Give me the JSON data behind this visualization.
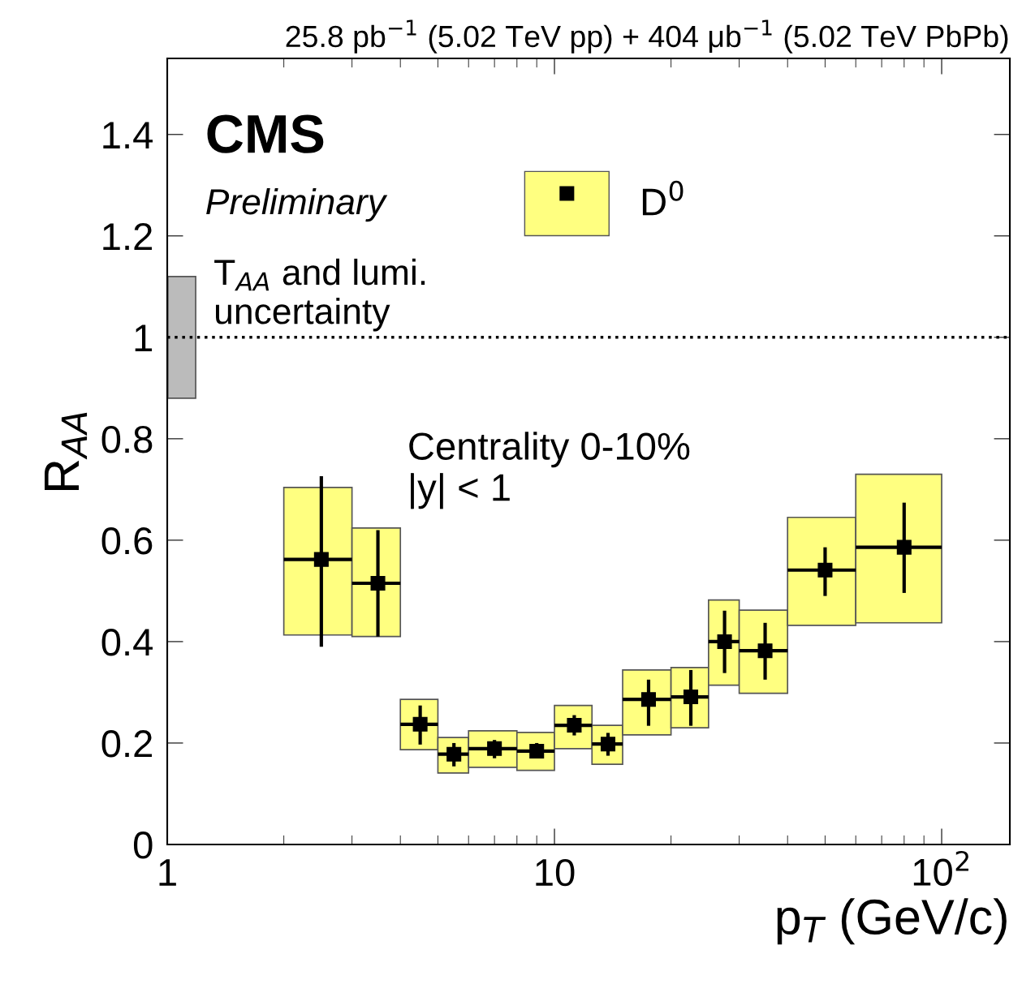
{
  "chart_data": {
    "type": "scatter",
    "title": "25.8 pb$^{−1}$ (5.02 TeV pp) + 404 μb$^{−1}$ (5.02 TeV PbPb)",
    "xlabel": "p$_{T}$ (GeV/c)",
    "ylabel": "R$_{AA}$",
    "log": "x",
    "xlim": [
      1,
      150
    ],
    "ylim": [
      0,
      1.55
    ],
    "xticks": [
      1,
      10,
      {
        "value": 100,
        "label": "10$^{2}$"
      }
    ],
    "yticks": [
      0,
      0.2,
      0.4,
      0.6,
      0.8,
      1,
      1.2,
      1.4
    ],
    "legend": "top",
    "grid": false,
    "series": [
      {
        "type": "bar",
        "color": "#ffff80",
        "x": [
          2.5,
          3.5,
          4.5,
          5.5,
          7,
          9,
          11.25,
          13.75,
          17.5,
          22.5,
          27.5,
          35,
          50,
          80
        ],
        "base": [
          0.413,
          0.41,
          0.187,
          0.141,
          0.152,
          0.146,
          0.189,
          0.158,
          0.216,
          0.23,
          0.314,
          0.298,
          0.432,
          0.437
        ],
        "values": [
          0.291,
          0.214,
          0.099,
          0.07,
          0.072,
          0.075,
          0.085,
          0.077,
          0.128,
          0.119,
          0.168,
          0.164,
          0.213,
          0.293
        ]
      },
      {
        "type": "bar",
        "color": "#bbbbbb",
        "x": [
          1.09
        ],
        "base": [
          0.88
        ],
        "values": [
          0.24
        ]
      },
      {
        "name": "D$^{0}$",
        "color": "#000000",
        "marker": "square",
        "x": [
          2.5,
          3.5,
          4.5,
          5.5,
          7,
          9,
          11.25,
          13.75,
          17.5,
          22.5,
          27.5,
          35,
          50,
          80
        ],
        "values": [
          0.562,
          0.515,
          0.237,
          0.178,
          0.189,
          0.184,
          0.235,
          0.198,
          0.286,
          0.291,
          0.4,
          0.382,
          0.541,
          0.586
        ],
        "errors": [
          [
            0.39,
            0.726
          ],
          [
            0.41,
            0.62
          ],
          [
            0.197,
            0.274
          ],
          [
            0.154,
            0.2
          ],
          [
            0.17,
            0.206
          ],
          [
            0.17,
            0.2
          ],
          [
            0.215,
            0.255
          ],
          [
            0.175,
            0.22
          ],
          [
            0.234,
            0.325
          ],
          [
            0.234,
            0.344
          ],
          [
            0.338,
            0.461
          ],
          [
            0.325,
            0.437
          ],
          [
            0.49,
            0.586
          ],
          [
            0.496,
            0.674
          ]
        ],
        "xerrors": [
          [
            2,
            3
          ],
          [
            3,
            4
          ],
          [
            4,
            5
          ],
          [
            5,
            6
          ],
          [
            6,
            8
          ],
          [
            8,
            10
          ],
          [
            10,
            12.5
          ],
          [
            12.5,
            15
          ],
          [
            15,
            20
          ],
          [
            20,
            25
          ],
          [
            25,
            30
          ],
          [
            30,
            40
          ],
          [
            40,
            60
          ],
          [
            60,
            100
          ]
        ]
      }
    ],
    "ref_lines": [
      {
        "axis": "y",
        "value": 1,
        "line_style": "dotted",
        "color": "#000000"
      }
    ],
    "annotations": [
      "CMS",
      "Preliminary",
      "T$_{AA}$ and lumi.\nuncertainty",
      "Centrality 0-10%\n|y| < 1"
    ]
  }
}
